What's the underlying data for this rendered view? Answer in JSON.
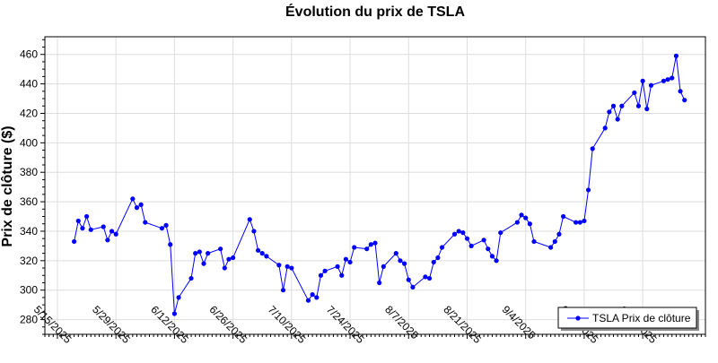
{
  "chart_data": {
    "type": "line",
    "title": "Évolution du prix de TSLA",
    "xlabel": "",
    "ylabel": "Prix de clôture ($)",
    "ylim": [
      270,
      472
    ],
    "yticks": [
      280,
      300,
      320,
      340,
      360,
      380,
      400,
      420,
      440,
      460
    ],
    "x_range": [
      "2025-05-12",
      "2025-10-17"
    ],
    "xticks": [
      {
        "date": "2025-05-15",
        "label": "5/15/2025"
      },
      {
        "date": "2025-05-29",
        "label": "5/29/2025"
      },
      {
        "date": "2025-06-12",
        "label": "6/12/2025"
      },
      {
        "date": "2025-06-26",
        "label": "6/26/2025"
      },
      {
        "date": "2025-07-10",
        "label": "7/10/2025"
      },
      {
        "date": "2025-07-24",
        "label": "7/24/2025"
      },
      {
        "date": "2025-08-07",
        "label": "8/7/2025"
      },
      {
        "date": "2025-08-21",
        "label": "8/21/2025"
      },
      {
        "date": "2025-09-04",
        "label": "9/4/2025"
      },
      {
        "date": "2025-09-18",
        "label": "9/18/2025"
      },
      {
        "date": "2025-10-02",
        "label": "10/2/2025"
      }
    ],
    "grid": true,
    "legend_position": "bottom-right",
    "series": [
      {
        "name": "TSLA Prix de clôture",
        "color": "#0000ff",
        "points": [
          [
            "2025-05-19",
            333
          ],
          [
            "2025-05-20",
            347
          ],
          [
            "2025-05-21",
            342
          ],
          [
            "2025-05-22",
            350
          ],
          [
            "2025-05-23",
            341
          ],
          [
            "2025-05-26",
            343
          ],
          [
            "2025-05-27",
            334
          ],
          [
            "2025-05-28",
            340
          ],
          [
            "2025-05-29",
            338
          ],
          [
            "2025-06-02",
            362
          ],
          [
            "2025-06-03",
            356
          ],
          [
            "2025-06-04",
            358
          ],
          [
            "2025-06-05",
            346
          ],
          [
            "2025-06-09",
            342
          ],
          [
            "2025-06-10",
            344
          ],
          [
            "2025-06-11",
            331
          ],
          [
            "2025-06-12",
            284
          ],
          [
            "2025-06-13",
            295
          ],
          [
            "2025-06-16",
            308
          ],
          [
            "2025-06-17",
            325
          ],
          [
            "2025-06-18",
            326
          ],
          [
            "2025-06-19",
            318
          ],
          [
            "2025-06-20",
            325
          ],
          [
            "2025-06-23",
            328
          ],
          [
            "2025-06-24",
            315
          ],
          [
            "2025-06-25",
            321
          ],
          [
            "2025-06-26",
            322
          ],
          [
            "2025-06-30",
            348
          ],
          [
            "2025-07-01",
            340
          ],
          [
            "2025-07-02",
            327
          ],
          [
            "2025-07-03",
            325
          ],
          [
            "2025-07-04",
            323
          ],
          [
            "2025-07-07",
            317
          ],
          [
            "2025-07-08",
            300
          ],
          [
            "2025-07-09",
            316
          ],
          [
            "2025-07-10",
            315
          ],
          [
            "2025-07-14",
            293
          ],
          [
            "2025-07-15",
            297
          ],
          [
            "2025-07-16",
            295
          ],
          [
            "2025-07-17",
            310
          ],
          [
            "2025-07-18",
            313
          ],
          [
            "2025-07-21",
            316
          ],
          [
            "2025-07-22",
            310
          ],
          [
            "2025-07-23",
            321
          ],
          [
            "2025-07-24",
            319
          ],
          [
            "2025-07-25",
            329
          ],
          [
            "2025-07-28",
            328
          ],
          [
            "2025-07-29",
            331
          ],
          [
            "2025-07-30",
            332
          ],
          [
            "2025-07-31",
            305
          ],
          [
            "2025-08-01",
            316
          ],
          [
            "2025-08-04",
            325
          ],
          [
            "2025-08-05",
            320
          ],
          [
            "2025-08-06",
            318
          ],
          [
            "2025-08-07",
            307
          ],
          [
            "2025-08-08",
            302
          ],
          [
            "2025-08-11",
            309
          ],
          [
            "2025-08-12",
            308
          ],
          [
            "2025-08-13",
            319
          ],
          [
            "2025-08-14",
            322
          ],
          [
            "2025-08-15",
            329
          ],
          [
            "2025-08-18",
            338
          ],
          [
            "2025-08-19",
            340
          ],
          [
            "2025-08-20",
            339
          ],
          [
            "2025-08-21",
            335
          ],
          [
            "2025-08-22",
            330
          ],
          [
            "2025-08-25",
            334
          ],
          [
            "2025-08-26",
            328
          ],
          [
            "2025-08-27",
            323
          ],
          [
            "2025-08-28",
            320
          ],
          [
            "2025-08-29",
            339
          ],
          [
            "2025-09-02",
            346
          ],
          [
            "2025-09-03",
            351
          ],
          [
            "2025-09-04",
            349
          ],
          [
            "2025-09-05",
            345
          ],
          [
            "2025-09-06",
            333
          ],
          [
            "2025-09-10",
            329
          ],
          [
            "2025-09-11",
            333
          ],
          [
            "2025-09-12",
            338
          ],
          [
            "2025-09-13",
            350
          ],
          [
            "2025-09-16",
            346
          ],
          [
            "2025-09-17",
            346
          ],
          [
            "2025-09-18",
            347
          ],
          [
            "2025-09-19",
            368
          ],
          [
            "2025-09-20",
            396
          ],
          [
            "2025-09-23",
            410
          ],
          [
            "2025-09-24",
            421
          ],
          [
            "2025-09-25",
            425
          ],
          [
            "2025-09-26",
            416
          ],
          [
            "2025-09-27",
            425
          ],
          [
            "2025-09-30",
            434
          ],
          [
            "2025-10-01",
            425
          ],
          [
            "2025-10-02",
            442
          ],
          [
            "2025-10-03",
            423
          ],
          [
            "2025-10-04",
            439
          ],
          [
            "2025-10-07",
            442
          ],
          [
            "2025-10-08",
            443
          ],
          [
            "2025-10-09",
            444
          ],
          [
            "2025-10-10",
            459
          ],
          [
            "2025-10-11",
            435
          ],
          [
            "2025-10-12",
            429
          ]
        ]
      }
    ]
  }
}
